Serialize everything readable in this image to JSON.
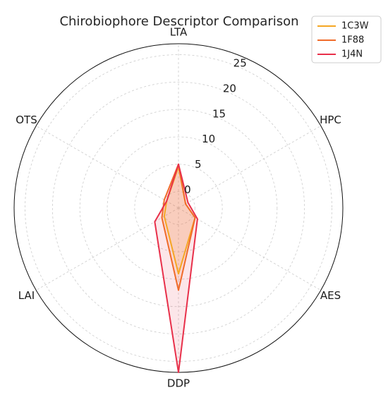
{
  "chart_data": {
    "type": "radar",
    "title": "Chirobiophore Descriptor Comparison",
    "axes": [
      "LTA",
      "HPC",
      "AES",
      "DDP",
      "LAI",
      "OTS"
    ],
    "rlim": [
      -3,
      27
    ],
    "r_ticks": [
      0,
      5,
      10,
      15,
      20,
      25
    ],
    "grid": true,
    "legend_position": "top-right",
    "series": [
      {
        "name": "1C3W",
        "color": "#f5a623",
        "values": [
          4.5,
          -1.5,
          0.5,
          9.0,
          0.0,
          -0.5
        ]
      },
      {
        "name": "1F88",
        "color": "#f06b2a",
        "values": [
          5.0,
          -1.5,
          0.5,
          12.0,
          0.5,
          0.0
        ]
      },
      {
        "name": "1J4N",
        "color": "#e8304a",
        "values": [
          5.0,
          -1.0,
          1.0,
          27.0,
          2.0,
          -0.5
        ]
      }
    ]
  }
}
